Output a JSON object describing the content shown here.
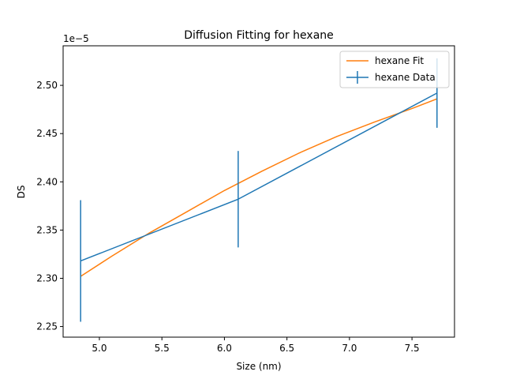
{
  "chart_data": {
    "type": "line",
    "title": "Diffusion Fitting for hexane",
    "xlabel": "Size (nm)",
    "ylabel": "DS",
    "y_offset_label": "1e−5",
    "xlim": [
      4.71,
      7.84
    ],
    "ylim": [
      2.239,
      2.541
    ],
    "x_ticks": [
      5.0,
      5.5,
      6.0,
      6.5,
      7.0,
      7.5
    ],
    "x_tick_labels": [
      "5.0",
      "5.5",
      "6.0",
      "6.5",
      "7.0",
      "7.5"
    ],
    "y_ticks": [
      2.25,
      2.3,
      2.35,
      2.4,
      2.45,
      2.5
    ],
    "y_tick_labels": [
      "2.25",
      "2.30",
      "2.35",
      "2.40",
      "2.45",
      "2.50"
    ],
    "grid": false,
    "legend_position": "top-right",
    "series": [
      {
        "name": "hexane Fit",
        "kind": "line",
        "color": "#ff7f0e",
        "x": [
          4.85,
          5.1,
          5.4,
          5.7,
          6.0,
          6.3,
          6.6,
          6.9,
          7.2,
          7.5,
          7.7
        ],
        "y": [
          2.302,
          2.323,
          2.347,
          2.369,
          2.391,
          2.411,
          2.43,
          2.447,
          2.462,
          2.476,
          2.486
        ]
      },
      {
        "name": "hexane Data",
        "kind": "errorbar",
        "color": "#1f77b4",
        "x": [
          4.85,
          6.11,
          7.7
        ],
        "y": [
          2.318,
          2.382,
          2.492
        ],
        "yerr": [
          0.063,
          0.05,
          0.036
        ]
      }
    ]
  }
}
